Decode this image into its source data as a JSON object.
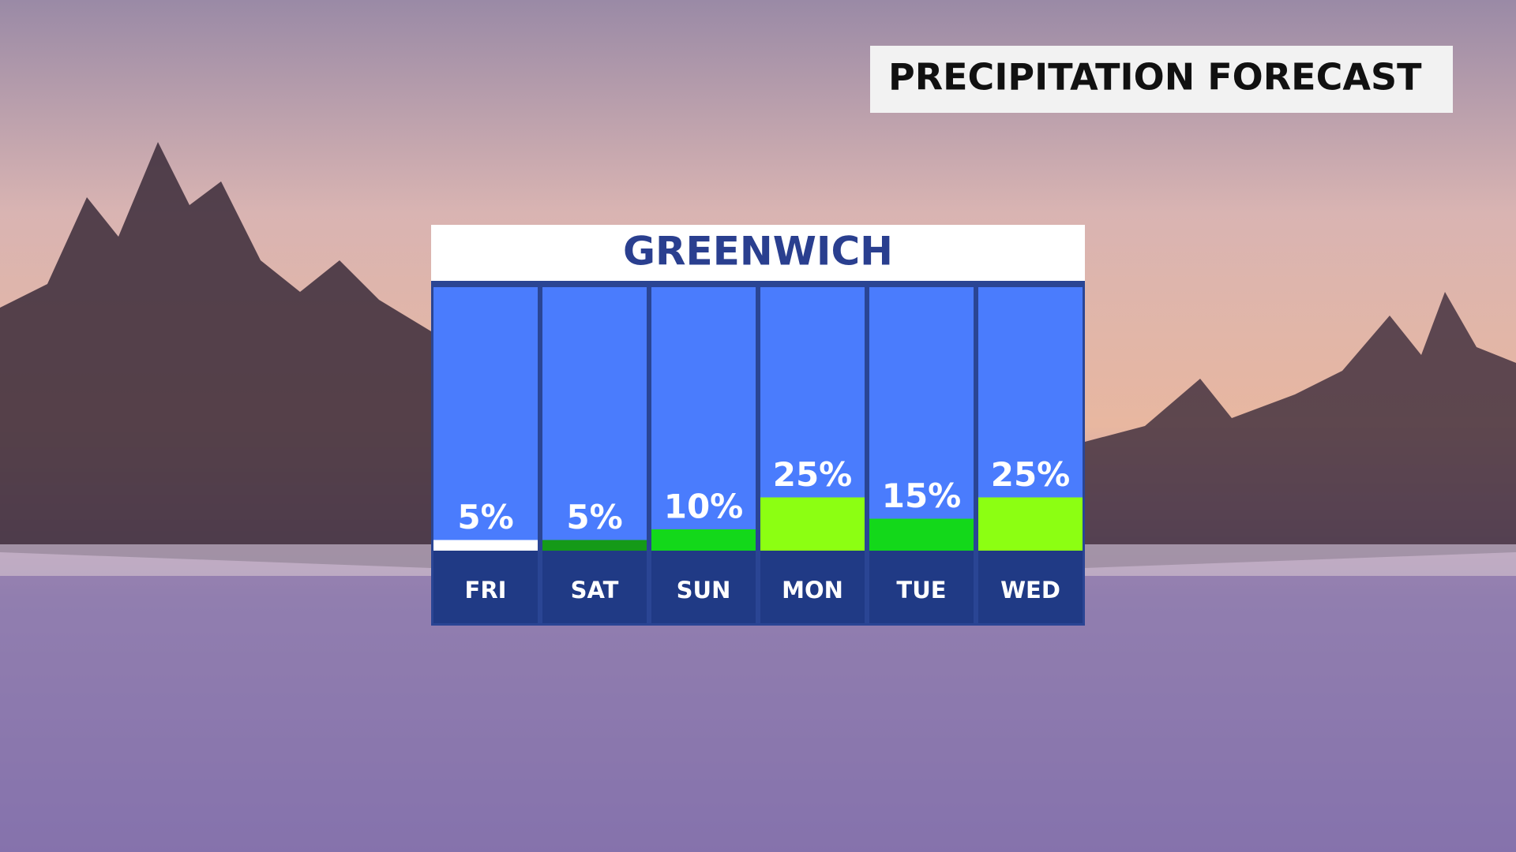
{
  "chart_data": {
    "type": "bar",
    "title": "PRECIPITATION FORECAST",
    "subtitle": "GREENWICH",
    "categories": [
      "FRI",
      "SAT",
      "SUN",
      "MON",
      "TUE",
      "WED"
    ],
    "values": [
      5,
      5,
      10,
      25,
      15,
      25
    ],
    "value_labels": [
      "5%",
      "5%",
      "10%",
      "25%",
      "15%",
      "25%"
    ],
    "colors": [
      "#ffffff",
      "#159a18",
      "#13d81a",
      "#8cff12",
      "#13d81a",
      "#8cff12"
    ]
  }
}
